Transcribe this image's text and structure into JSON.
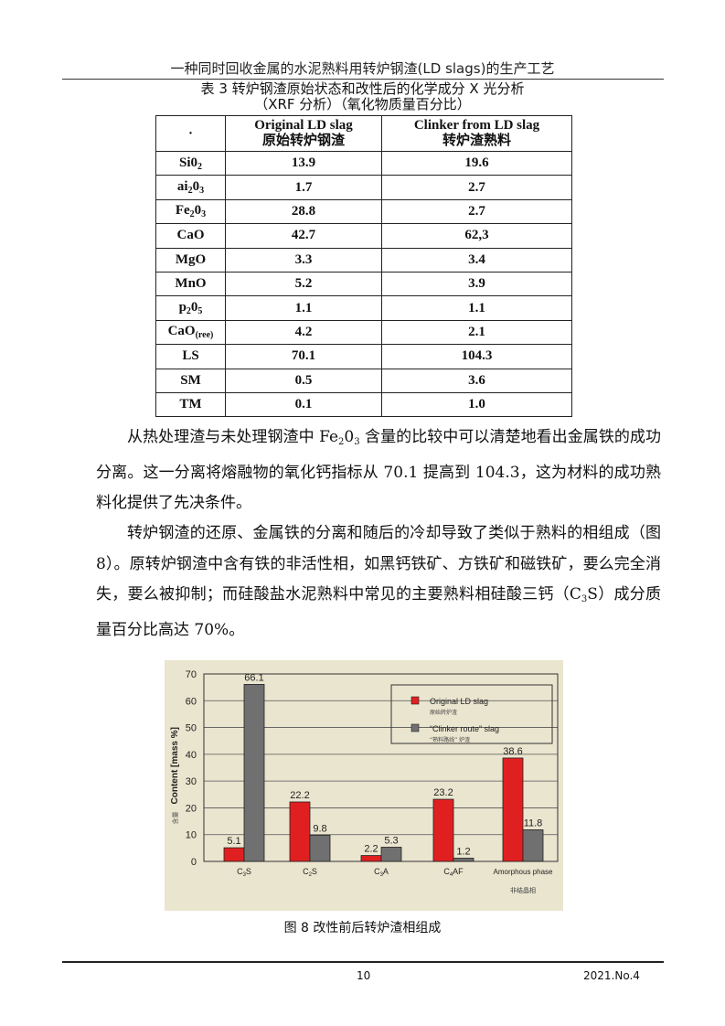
{
  "running_head": "一种同时回收金属的水泥熟料用转炉钢渣(LD slags)的生产工艺",
  "table": {
    "caption_line1": "表 3 转炉钢渣原始状态和改性后的化学成分 X 光分析",
    "caption_line2": "（XRF 分析）（氧化物质量百分比）",
    "header": {
      "col0": "·",
      "col1_en": "Original LD slag",
      "col1_zh": "原始转炉钢渣",
      "col2_en": "Clinker from LD slag",
      "col2_zh": "转炉渣熟料"
    },
    "rows": [
      {
        "base": "Si0",
        "sub": "2",
        "tail": "",
        "orig": "13.9",
        "clinker": "19.6"
      },
      {
        "base": "ai",
        "sub": "2",
        "tail": "0",
        "sub2": "3",
        "orig": "1.7",
        "clinker": "2.7"
      },
      {
        "base": "Fe",
        "sub": "2",
        "tail": "0",
        "sub2": "3",
        "orig": "28.8",
        "clinker": "2.7"
      },
      {
        "base": "CaO",
        "sub": "",
        "tail": "",
        "orig": "42.7",
        "clinker": "62,3"
      },
      {
        "base": "MgO",
        "sub": "",
        "tail": "",
        "orig": "3.3",
        "clinker": "3.4"
      },
      {
        "base": "MnO",
        "sub": "",
        "tail": "",
        "orig": "5.2",
        "clinker": "3.9"
      },
      {
        "base": "p",
        "sub": "2",
        "tail": "0",
        "sub2": "5",
        "orig": "1.1",
        "clinker": "1.1"
      },
      {
        "base": "CaO",
        "sub": "(ree)",
        "tail": "",
        "orig": "4.2",
        "clinker": "2.1"
      },
      {
        "base": "LS",
        "sub": "",
        "tail": "",
        "orig": "70.1",
        "clinker": "104.3"
      },
      {
        "base": "SM",
        "sub": "",
        "tail": "",
        "orig": "0.5",
        "clinker": "3.6"
      },
      {
        "base": "TM",
        "sub": "",
        "tail": "",
        "orig": "0.1",
        "clinker": "1.0"
      }
    ]
  },
  "para1": {
    "a": "从热处理渣与未处理钢渣中 Fe",
    "s1": "2",
    "b": "0",
    "s2": "3",
    "c": " 含量的比较中可以清楚地看出金属铁的成功分离。这一分离将熔融物的氧化钙指标从 70.1 提高到 104.3，这为材料的成功熟料化提供了先决条件。"
  },
  "para2": {
    "a": "转炉钢渣的还原、金属铁的分离和随后的冷却导致了类似于熟料的相组成（图 8）。原转炉钢渣中含有铁的非活性相，如黑钙铁矿、方铁矿和磁铁矿，要么完全消失，要么被抑制；而硅酸盐水泥熟料中常见的主要熟料相硅酸三钙（C",
    "s1": "3",
    "b": "S）成分质量百分比高达 70%。"
  },
  "chart_data": {
    "type": "bar",
    "categories": [
      "C3S",
      "C2S",
      "C3A",
      "C4AF",
      "Amorphous phase"
    ],
    "category_note_zh": "非结晶相",
    "ylabel": "Content [mass %]",
    "ylabel_zh": "含量",
    "ylim": [
      0,
      70
    ],
    "yticks": [
      0,
      10,
      20,
      30,
      40,
      50,
      60,
      70
    ],
    "grid": true,
    "legend_position": "top-right",
    "series": [
      {
        "name": "Original LD slag",
        "name_zh": "原始转炉渣",
        "color": "#e02020",
        "values": [
          5.1,
          22.2,
          2.2,
          23.2,
          38.6
        ]
      },
      {
        "name": "“Clinker route” slag",
        "name_zh": "“熟料路线” 炉渣",
        "color": "#707070",
        "values": [
          66.1,
          9.8,
          5.3,
          1.2,
          11.8
        ]
      }
    ]
  },
  "figure_caption": "图 8 改性前后转炉渣相组成",
  "footer": {
    "page": "10",
    "issue": "2021.No.4"
  }
}
